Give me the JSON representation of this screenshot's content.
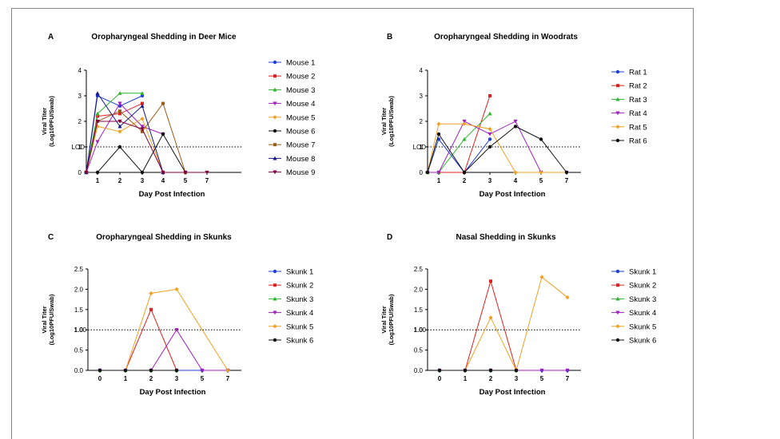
{
  "chart_data": [
    {
      "panel": "A",
      "type": "line",
      "title": "Oropharyngeal Shedding in Deer Mice",
      "xlabel": "Day Post Infection",
      "ylabel_line1": "Viral Titer",
      "ylabel_line2": "(Log10PFU/Swab)",
      "x_ticks": [
        "1",
        "2",
        "3",
        "4",
        "5",
        "7"
      ],
      "y_ticks": [
        "0",
        "1",
        "2",
        "3",
        "4"
      ],
      "lod_label": "LOD",
      "lod_value": 1,
      "ylim": [
        0,
        4
      ],
      "x_positions": [
        0,
        1,
        2,
        3,
        4,
        5,
        7
      ],
      "series": [
        {
          "name": "Mouse 1",
          "color": "#1f3fd6",
          "marker": "circle",
          "points": [
            [
              0,
              0
            ],
            [
              1,
              3.0
            ],
            [
              2,
              2.6
            ],
            [
              3,
              3.0
            ]
          ]
        },
        {
          "name": "Mouse 2",
          "color": "#e02020",
          "marker": "square",
          "points": [
            [
              0,
              0
            ],
            [
              1,
              2.2
            ],
            [
              2,
              2.3
            ],
            [
              3,
              2.7
            ]
          ]
        },
        {
          "name": "Mouse 3",
          "color": "#2fb52f",
          "marker": "triangle",
          "points": [
            [
              0,
              0
            ],
            [
              1,
              2.3
            ],
            [
              2,
              3.1
            ],
            [
              3,
              3.1
            ]
          ]
        },
        {
          "name": "Mouse 4",
          "color": "#a020c0",
          "marker": "triangle-down",
          "points": [
            [
              0,
              0
            ],
            [
              1,
              1.2
            ],
            [
              2,
              2.7
            ],
            [
              3,
              1.8
            ],
            [
              4,
              1.5
            ]
          ]
        },
        {
          "name": "Mouse 5",
          "color": "#f0a020",
          "marker": "diamond",
          "points": [
            [
              0,
              0
            ],
            [
              1,
              1.8
            ],
            [
              2,
              1.6
            ],
            [
              3,
              2.1
            ],
            [
              4,
              0
            ],
            [
              5,
              0
            ]
          ]
        },
        {
          "name": "Mouse 6",
          "color": "#111111",
          "marker": "circle",
          "points": [
            [
              0,
              0
            ],
            [
              1,
              0
            ],
            [
              2,
              1.0
            ],
            [
              3,
              0
            ],
            [
              4,
              1.5
            ],
            [
              5,
              0
            ]
          ]
        },
        {
          "name": "Mouse 7",
          "color": "#9a5a1a",
          "marker": "square",
          "points": [
            [
              0,
              0
            ],
            [
              1,
              2.0
            ],
            [
              2,
              2.4
            ],
            [
              3,
              1.6
            ],
            [
              4,
              2.7
            ],
            [
              5,
              0
            ]
          ]
        },
        {
          "name": "Mouse 8",
          "color": "#1a1a80",
          "marker": "triangle",
          "points": [
            [
              0,
              0
            ],
            [
              1,
              3.1
            ],
            [
              2,
              1.8
            ],
            [
              3,
              2.6
            ],
            [
              4,
              0
            ]
          ]
        },
        {
          "name": "Mouse 9",
          "color": "#800040",
          "marker": "triangle-down",
          "points": [
            [
              0,
              0
            ],
            [
              1,
              2.0
            ],
            [
              2,
              2.0
            ],
            [
              3,
              1.7
            ],
            [
              4,
              0
            ],
            [
              5,
              0
            ],
            [
              7,
              0
            ]
          ]
        }
      ]
    },
    {
      "panel": "B",
      "type": "line",
      "title": "Oropharyngeal Shedding in Woodrats",
      "xlabel": "Day Post Infection",
      "ylabel_line1": "Viral Titer",
      "ylabel_line2": "(Log10PFU/Swab)",
      "x_ticks": [
        "1",
        "2",
        "3",
        "4",
        "5",
        "7"
      ],
      "y_ticks": [
        "0",
        "1",
        "2",
        "3",
        "4"
      ],
      "lod_label": "LOD",
      "lod_value": 1,
      "ylim": [
        0,
        4
      ],
      "x_positions": [
        0,
        1,
        2,
        3,
        4,
        5,
        7
      ],
      "series": [
        {
          "name": "Rat 1",
          "color": "#1f3fd6",
          "marker": "circle",
          "points": [
            [
              0,
              0
            ],
            [
              1,
              1.3
            ],
            [
              2,
              0
            ],
            [
              3,
              1.3
            ]
          ]
        },
        {
          "name": "Rat 2",
          "color": "#e02020",
          "marker": "square",
          "points": [
            [
              0,
              0
            ],
            [
              1,
              0
            ],
            [
              2,
              0
            ],
            [
              3,
              3.0
            ]
          ]
        },
        {
          "name": "Rat 3",
          "color": "#2fb52f",
          "marker": "triangle",
          "points": [
            [
              0,
              0
            ],
            [
              1,
              0
            ],
            [
              2,
              1.3
            ],
            [
              3,
              2.3
            ]
          ]
        },
        {
          "name": "Rat 4",
          "color": "#a020c0",
          "marker": "triangle-down",
          "points": [
            [
              0,
              0
            ],
            [
              1,
              0
            ],
            [
              2,
              2.0
            ],
            [
              3,
              1.5
            ],
            [
              4,
              2.0
            ],
            [
              5,
              0
            ],
            [
              7,
              0
            ]
          ]
        },
        {
          "name": "Rat 5",
          "color": "#f0a020",
          "marker": "diamond",
          "points": [
            [
              0,
              0
            ],
            [
              1,
              1.9
            ],
            [
              2,
              1.9
            ],
            [
              3,
              1.7
            ],
            [
              4,
              0
            ],
            [
              5,
              0
            ],
            [
              7,
              0
            ]
          ]
        },
        {
          "name": "Rat 6",
          "color": "#111111",
          "marker": "circle",
          "points": [
            [
              0,
              0
            ],
            [
              1,
              1.5
            ],
            [
              2,
              0
            ],
            [
              3,
              1.0
            ],
            [
              4,
              1.8
            ],
            [
              5,
              1.3
            ],
            [
              7,
              0
            ]
          ]
        }
      ]
    },
    {
      "panel": "C",
      "type": "line",
      "title": "Oropharyngeal Shedding in Skunks",
      "xlabel": "Day Post Infection",
      "ylabel_line1": "Viral Titer",
      "ylabel_line2": "(Log10PFU/Swab)",
      "x_ticks": [
        "0",
        "1",
        "2",
        "3",
        "5",
        "7"
      ],
      "y_ticks": [
        "0.0",
        "0.5",
        "1.0",
        "1.5",
        "2.0",
        "2.5"
      ],
      "lod_label": "1.00",
      "lod_value": 1,
      "ylim": [
        0,
        2.5
      ],
      "x_positions": [
        0,
        1,
        2,
        3,
        5,
        7
      ],
      "series": [
        {
          "name": "Skunk 1",
          "color": "#1f3fd6",
          "marker": "circle",
          "points": [
            [
              0,
              0
            ],
            [
              1,
              0
            ],
            [
              2,
              0
            ],
            [
              3,
              0
            ],
            [
              5,
              0
            ],
            [
              7,
              0
            ]
          ]
        },
        {
          "name": "Skunk 2",
          "color": "#e02020",
          "marker": "square",
          "points": [
            [
              0,
              0
            ],
            [
              1,
              0
            ],
            [
              2,
              1.5
            ],
            [
              3,
              0
            ]
          ]
        },
        {
          "name": "Skunk 3",
          "color": "#2fb52f",
          "marker": "triangle",
          "points": [
            [
              0,
              0
            ],
            [
              1,
              0
            ],
            [
              2,
              0
            ],
            [
              3,
              0
            ]
          ]
        },
        {
          "name": "Skunk 4",
          "color": "#a020c0",
          "marker": "triangle-down",
          "points": [
            [
              0,
              0
            ],
            [
              1,
              0
            ],
            [
              2,
              0
            ],
            [
              3,
              1.0
            ],
            [
              5,
              0
            ],
            [
              7,
              0
            ]
          ]
        },
        {
          "name": "Skunk 5",
          "color": "#f0a020",
          "marker": "diamond",
          "points": [
            [
              1,
              0
            ],
            [
              2,
              1.9
            ],
            [
              3,
              2.0
            ],
            [
              7,
              0
            ]
          ]
        },
        {
          "name": "Skunk 6",
          "color": "#111111",
          "marker": "circle",
          "points": [
            [
              0,
              0
            ],
            [
              1,
              0
            ],
            [
              2,
              0
            ],
            [
              3,
              0
            ]
          ]
        }
      ]
    },
    {
      "panel": "D",
      "type": "line",
      "title": "Nasal Shedding in Skunks",
      "xlabel": "Day Post Infection",
      "ylabel_line1": "Viral Titer",
      "ylabel_line2": "(Log10PFU/Swab)",
      "x_ticks": [
        "0",
        "1",
        "2",
        "3",
        "5",
        "7"
      ],
      "y_ticks": [
        "0.0",
        "0.5",
        "1.0",
        "1.5",
        "2.0",
        "2.5"
      ],
      "lod_label": "1.00",
      "lod_value": 1,
      "ylim": [
        0,
        2.5
      ],
      "x_positions": [
        0,
        1,
        2,
        3,
        5,
        7
      ],
      "series": [
        {
          "name": "Skunk 1",
          "color": "#1f3fd6",
          "marker": "circle",
          "points": [
            [
              0,
              0
            ],
            [
              1,
              0
            ],
            [
              2,
              0
            ],
            [
              3,
              0
            ],
            [
              5,
              0
            ],
            [
              7,
              0
            ]
          ]
        },
        {
          "name": "Skunk 2",
          "color": "#e02020",
          "marker": "square",
          "points": [
            [
              0,
              0
            ],
            [
              1,
              0
            ],
            [
              2,
              2.2
            ],
            [
              3,
              0
            ]
          ]
        },
        {
          "name": "Skunk 3",
          "color": "#2fb52f",
          "marker": "triangle",
          "points": [
            [
              0,
              0
            ],
            [
              1,
              0
            ],
            [
              2,
              0
            ],
            [
              3,
              0
            ]
          ]
        },
        {
          "name": "Skunk 4",
          "color": "#a020c0",
          "marker": "triangle-down",
          "points": [
            [
              0,
              0
            ],
            [
              1,
              0
            ],
            [
              2,
              0
            ],
            [
              3,
              0
            ],
            [
              5,
              0
            ],
            [
              7,
              0
            ]
          ]
        },
        {
          "name": "Skunk 5",
          "color": "#f0a020",
          "marker": "diamond",
          "points": [
            [
              1,
              0
            ],
            [
              2,
              1.3
            ],
            [
              3,
              0
            ],
            [
              5,
              2.3
            ],
            [
              7,
              1.8
            ]
          ]
        },
        {
          "name": "Skunk 6",
          "color": "#111111",
          "marker": "circle",
          "points": [
            [
              0,
              0
            ],
            [
              1,
              0
            ],
            [
              2,
              0
            ],
            [
              3,
              0
            ]
          ]
        }
      ]
    }
  ]
}
